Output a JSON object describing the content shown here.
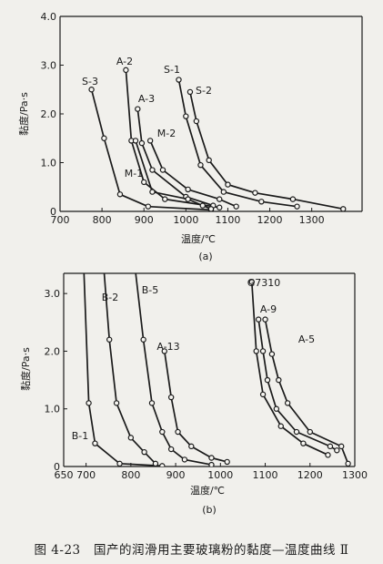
{
  "chart_data": [
    {
      "type": "line",
      "subtitle": "(a)",
      "xlabel": "温度/℃",
      "ylabel": "黏度/Pa·s",
      "xlim": [
        700,
        1420
      ],
      "ylim": [
        0,
        4.0
      ],
      "xticks": [
        700,
        800,
        900,
        1000,
        1100,
        1200,
        1300
      ],
      "yticks": [
        0,
        1.0,
        2.0,
        3.0,
        4.0
      ],
      "ytick_labels": [
        "0",
        "1.0",
        "2.0",
        "3.0",
        "4.0"
      ],
      "grid": false,
      "legend": "none",
      "series": [
        {
          "name": "S-3",
          "x": [
            775,
            805,
            843,
            910,
            1060
          ],
          "y": [
            2.5,
            1.5,
            0.35,
            0.1,
            0.03
          ]
        },
        {
          "name": "A-2",
          "x": [
            857,
            870,
            900,
            950,
            1080
          ],
          "y": [
            2.9,
            1.45,
            0.6,
            0.25,
            0.08
          ]
        },
        {
          "name": "A-3",
          "x": [
            885,
            895,
            920,
            1000,
            1065
          ],
          "y": [
            2.1,
            1.4,
            0.85,
            0.3,
            0.12
          ]
        },
        {
          "name": "M-2",
          "x": [
            915,
            945,
            1005,
            1080,
            1120
          ],
          "y": [
            1.45,
            0.85,
            0.45,
            0.25,
            0.1
          ]
        },
        {
          "name": "M-1",
          "x": [
            880,
            920,
            1005,
            1040,
            1060
          ],
          "y": [
            1.45,
            0.4,
            0.25,
            0.12,
            0.05
          ]
        },
        {
          "name": "S-1",
          "x": [
            983,
            1000,
            1035,
            1090,
            1180,
            1265
          ],
          "y": [
            2.7,
            1.95,
            0.95,
            0.4,
            0.2,
            0.1
          ]
        },
        {
          "name": "S-2",
          "x": [
            1010,
            1025,
            1055,
            1100,
            1165,
            1255,
            1375
          ],
          "y": [
            2.45,
            1.85,
            1.05,
            0.55,
            0.38,
            0.25,
            0.05
          ]
        }
      ]
    },
    {
      "type": "line",
      "subtitle": "(b)",
      "xlabel": "温度/℃",
      "ylabel": "黏度/Pa·s",
      "xlim": [
        650,
        1300
      ],
      "ylim": [
        0,
        3.35
      ],
      "xticks": [
        650,
        700,
        800,
        900,
        1000,
        1100,
        1200,
        1300
      ],
      "yticks": [
        0,
        1.0,
        2.0,
        3.0
      ],
      "ytick_labels": [
        "0",
        "1.0",
        "2.0",
        "3.0"
      ],
      "grid": false,
      "legend": "none",
      "series": [
        {
          "name": "B-1",
          "x": [
            695,
            706,
            720,
            775,
            870
          ],
          "y": [
            3.4,
            1.1,
            0.4,
            0.05,
            0.01
          ]
        },
        {
          "name": "B-2",
          "x": [
            740,
            752,
            768,
            800,
            830,
            855
          ],
          "y": [
            3.4,
            2.2,
            1.1,
            0.5,
            0.25,
            0.05
          ]
        },
        {
          "name": "B-5",
          "x": [
            810,
            828,
            847,
            870,
            890,
            920,
            980
          ],
          "y": [
            3.4,
            2.2,
            1.1,
            0.6,
            0.3,
            0.12,
            0.03
          ]
        },
        {
          "name": "A-13",
          "x": [
            875,
            890,
            905,
            935,
            980,
            1015
          ],
          "y": [
            2.0,
            1.2,
            0.6,
            0.35,
            0.15,
            0.08
          ]
        },
        {
          "name": "G7310",
          "x": [
            1070,
            1080,
            1095,
            1135,
            1185,
            1240
          ],
          "y": [
            3.2,
            2.0,
            1.25,
            0.7,
            0.4,
            0.2
          ]
        },
        {
          "name": "A-9",
          "x": [
            1085,
            1095,
            1105,
            1125,
            1170,
            1245,
            1260
          ],
          "y": [
            2.55,
            2.0,
            1.5,
            1.0,
            0.6,
            0.35,
            0.28
          ]
        },
        {
          "name": "A-5",
          "x": [
            1100,
            1115,
            1130,
            1150,
            1200,
            1270,
            1285
          ],
          "y": [
            2.55,
            1.95,
            1.5,
            1.1,
            0.6,
            0.35,
            0.05
          ]
        }
      ]
    }
  ],
  "caption": {
    "number": "图 4-23",
    "text": "国产的润滑用主要玻璃粉的黏度—温度曲线 Ⅱ"
  }
}
